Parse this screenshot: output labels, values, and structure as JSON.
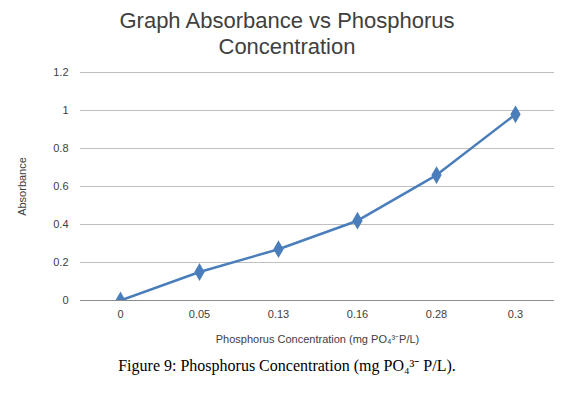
{
  "chart_data": {
    "type": "line",
    "title": "Graph Absorbance vs Phosphorus Concentration",
    "caption": "Figure 9: Phosphorus Concentration (mg PO₄³⁻ P/L).",
    "x_label": "Phosphorus Concentration (mg PO₄³⁻P/L)",
    "y_label": "Absorbance",
    "categories": [
      "0",
      "0.05",
      "0.13",
      "0.16",
      "0.28",
      "0.3"
    ],
    "values": [
      0,
      0.15,
      0.27,
      0.42,
      0.66,
      0.98
    ],
    "color": "#4a7ebb",
    "marker": "diamond",
    "ylim": [
      0,
      1.2
    ],
    "yticks": [
      0,
      0.2,
      0.4,
      0.6,
      0.8,
      1,
      1.2
    ],
    "grid": true
  }
}
